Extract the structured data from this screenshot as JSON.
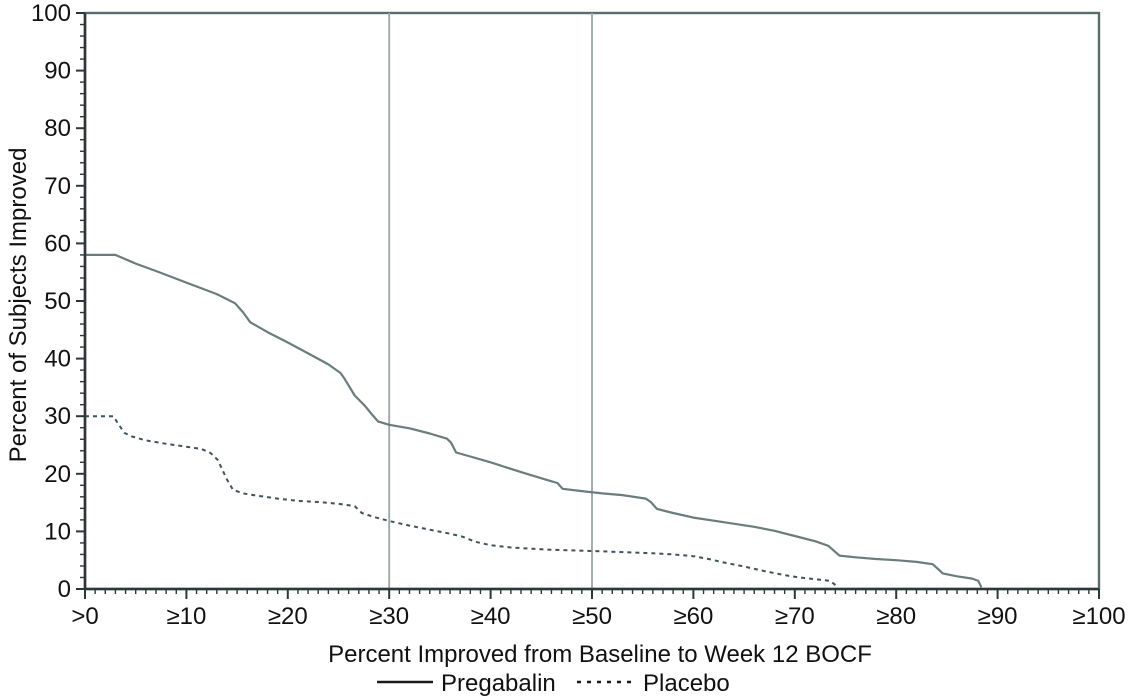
{
  "chart_data": {
    "type": "line",
    "title": "",
    "xlabel": "Percent Improved from Baseline to Week 12 BOCF",
    "ylabel": "Percent of Subjects Improved",
    "xlim": [
      0,
      100
    ],
    "ylim": [
      0,
      100
    ],
    "grid": false,
    "legend_position": "bottom",
    "x_ticks": [
      {
        "value": 0,
        "label": ">0"
      },
      {
        "value": 10,
        "label": "≥10"
      },
      {
        "value": 20,
        "label": "≥20"
      },
      {
        "value": 30,
        "label": "≥30"
      },
      {
        "value": 40,
        "label": "≥40"
      },
      {
        "value": 50,
        "label": "≥50"
      },
      {
        "value": 60,
        "label": "≥60"
      },
      {
        "value": 70,
        "label": "≥70"
      },
      {
        "value": 80,
        "label": "≥80"
      },
      {
        "value": 90,
        "label": "≥90"
      },
      {
        "value": 100,
        "label": "≥100"
      }
    ],
    "y_ticks": [
      {
        "value": 0,
        "label": "0"
      },
      {
        "value": 10,
        "label": "10"
      },
      {
        "value": 20,
        "label": "20"
      },
      {
        "value": 30,
        "label": "30"
      },
      {
        "value": 40,
        "label": "40"
      },
      {
        "value": 50,
        "label": "50"
      },
      {
        "value": 60,
        "label": "60"
      },
      {
        "value": 70,
        "label": "70"
      },
      {
        "value": 80,
        "label": "80"
      },
      {
        "value": 90,
        "label": "90"
      },
      {
        "value": 100,
        "label": "100"
      }
    ],
    "x_minor_step": 1,
    "y_minor_step": 2,
    "reference_lines_x": [
      30,
      50
    ],
    "colors": {
      "axis": "#2c3838",
      "plot_border": "#5c6c6c",
      "reference_line": "#98a8a6",
      "text": "#111111",
      "legend_marker": "#1a1a1a"
    },
    "series": [
      {
        "name": "Pregabalin",
        "style": "solid",
        "color": "#6b7c7c",
        "points": [
          [
            0,
            58
          ],
          [
            3,
            58
          ],
          [
            5,
            56.5
          ],
          [
            7,
            55.2
          ],
          [
            10,
            53.2
          ],
          [
            13,
            51.2
          ],
          [
            14.8,
            49.6
          ],
          [
            15.6,
            48
          ],
          [
            16.3,
            46.3
          ],
          [
            18,
            44.6
          ],
          [
            20,
            42.8
          ],
          [
            22,
            40.9
          ],
          [
            24,
            39
          ],
          [
            25.2,
            37.5
          ],
          [
            25.6,
            36.5
          ],
          [
            26.6,
            33.6
          ],
          [
            27.6,
            31.8
          ],
          [
            28.3,
            30.3
          ],
          [
            28.9,
            29.1
          ],
          [
            30,
            28.5
          ],
          [
            32,
            27.9
          ],
          [
            34,
            27
          ],
          [
            35.7,
            26.1
          ],
          [
            36.1,
            25.4
          ],
          [
            36.6,
            23.7
          ],
          [
            38,
            23
          ],
          [
            40,
            22
          ],
          [
            43,
            20.3
          ],
          [
            45.8,
            18.8
          ],
          [
            46.6,
            18.4
          ],
          [
            47.1,
            17.4
          ],
          [
            49,
            17
          ],
          [
            51,
            16.6
          ],
          [
            53,
            16.3
          ],
          [
            55.3,
            15.7
          ],
          [
            55.8,
            15.1
          ],
          [
            56.4,
            13.9
          ],
          [
            58,
            13.2
          ],
          [
            60,
            12.4
          ],
          [
            63,
            11.6
          ],
          [
            66,
            10.8
          ],
          [
            68,
            10.1
          ],
          [
            70,
            9.2
          ],
          [
            72,
            8.3
          ],
          [
            73.3,
            7.5
          ],
          [
            74.4,
            5.8
          ],
          [
            76,
            5.5
          ],
          [
            78,
            5.2
          ],
          [
            80,
            5
          ],
          [
            82,
            4.7
          ],
          [
            83.6,
            4.3
          ],
          [
            84.1,
            3.5
          ],
          [
            84.6,
            2.7
          ],
          [
            86,
            2.2
          ],
          [
            87.5,
            1.8
          ],
          [
            88.1,
            1.4
          ],
          [
            88.4,
            0.3
          ]
        ]
      },
      {
        "name": "Placebo",
        "style": "dashed",
        "color": "#41535a",
        "points": [
          [
            0,
            30
          ],
          [
            2.8,
            30
          ],
          [
            3.3,
            28.6
          ],
          [
            3.9,
            27.1
          ],
          [
            4.6,
            26.5
          ],
          [
            6,
            25.8
          ],
          [
            8,
            25.2
          ],
          [
            10,
            24.7
          ],
          [
            11.5,
            24.3
          ],
          [
            12.4,
            23.6
          ],
          [
            13.1,
            22.4
          ],
          [
            14,
            19
          ],
          [
            14.6,
            17.2
          ],
          [
            15.6,
            16.6
          ],
          [
            17,
            16.2
          ],
          [
            19,
            15.7
          ],
          [
            21,
            15.3
          ],
          [
            23,
            15.1
          ],
          [
            25,
            14.8
          ],
          [
            26.6,
            14.4
          ],
          [
            27.3,
            13.2
          ],
          [
            28.5,
            12.5
          ],
          [
            30,
            11.8
          ],
          [
            32,
            11
          ],
          [
            34,
            10.3
          ],
          [
            36,
            9.6
          ],
          [
            37.2,
            9.1
          ],
          [
            38.5,
            8.2
          ],
          [
            40,
            7.6
          ],
          [
            42,
            7.2
          ],
          [
            44,
            7
          ],
          [
            46,
            6.8
          ],
          [
            48,
            6.7
          ],
          [
            50,
            6.6
          ],
          [
            53,
            6.4
          ],
          [
            56,
            6.2
          ],
          [
            58,
            6
          ],
          [
            60,
            5.7
          ],
          [
            61.5,
            5.2
          ],
          [
            63,
            4.6
          ],
          [
            65,
            3.9
          ],
          [
            67,
            3.1
          ],
          [
            69,
            2.4
          ],
          [
            70.5,
            2
          ],
          [
            72,
            1.7
          ],
          [
            73.5,
            1.4
          ],
          [
            74.2,
            0.4
          ]
        ]
      }
    ]
  }
}
